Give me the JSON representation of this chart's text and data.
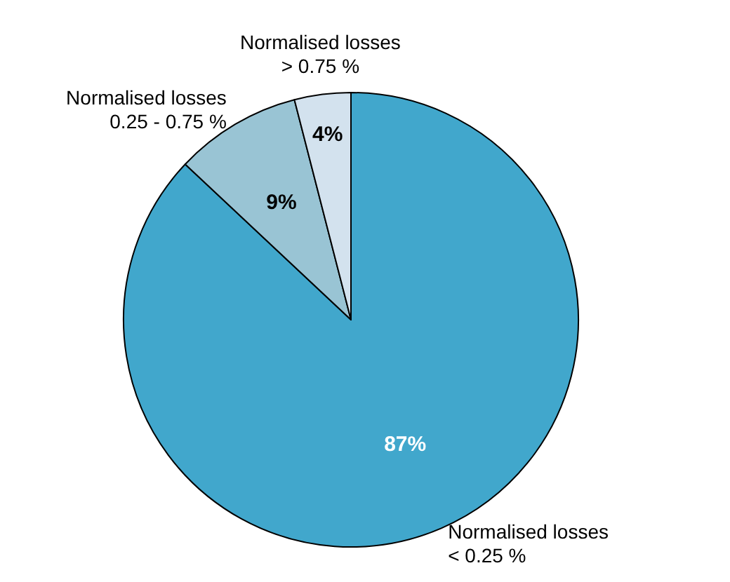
{
  "chart_data": {
    "type": "pie",
    "categories": [
      "Normalised losses\n< 0.25 %",
      "Normalised losses\n0.25 - 0.75 %",
      "Normalised losses\n> 0.75 %"
    ],
    "values": [
      87,
      9,
      4
    ],
    "value_labels": [
      "87%",
      "9%",
      "4%"
    ],
    "colors": [
      "#41a7cc",
      "#99c4d4",
      "#d3e2ee"
    ],
    "legend": false
  }
}
